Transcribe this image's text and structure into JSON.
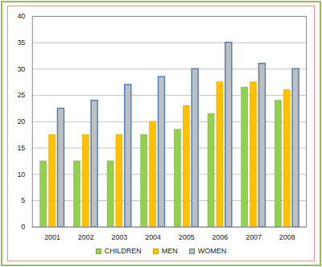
{
  "chart_data": {
    "type": "bar",
    "categories": [
      "2001",
      "2002",
      "2003",
      "2004",
      "2005",
      "2006",
      "2007",
      "2008"
    ],
    "series": [
      {
        "name": "CHILDREN",
        "color": "#92d050",
        "values": [
          12.5,
          12.5,
          12.5,
          17.5,
          18.5,
          21.5,
          26.5,
          24
        ]
      },
      {
        "name": "MEN",
        "color": "#ffc000",
        "values": [
          17.5,
          17.5,
          17.5,
          20,
          23,
          27.5,
          27.5,
          26
        ]
      },
      {
        "name": "WOMEN",
        "color": "#bfbfbf",
        "values": [
          22.5,
          24,
          27,
          28.5,
          30,
          35,
          31,
          30
        ]
      }
    ],
    "ylim": [
      0,
      40
    ],
    "yticks": [
      0,
      5,
      10,
      15,
      20,
      25,
      30,
      35,
      40
    ],
    "grid": true,
    "legend": "bottom"
  }
}
